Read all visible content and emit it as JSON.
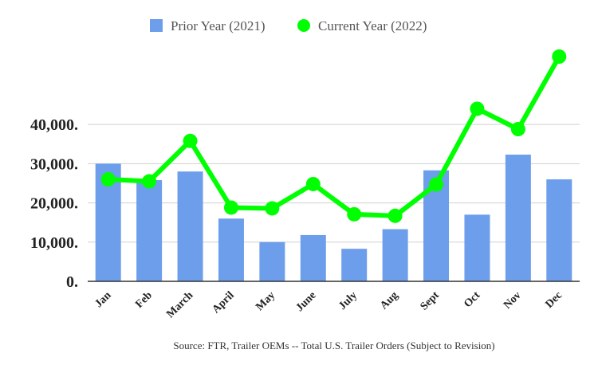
{
  "chart_data": {
    "type": "bar",
    "categories": [
      "Jan",
      "Feb",
      "March",
      "April",
      "May",
      "June",
      "July",
      "Aug",
      "Sept",
      "Oct",
      "Nov",
      "Dec"
    ],
    "series": [
      {
        "name": "Prior Year (2021)",
        "type": "bar",
        "color": "#6d9eeb",
        "values": [
          30000,
          25800,
          28000,
          16000,
          10000,
          11800,
          8300,
          13300,
          28300,
          17000,
          32300,
          26000
        ]
      },
      {
        "name": "Current Year (2022)",
        "type": "line",
        "color": "#00ff00",
        "values": [
          26000,
          25500,
          35800,
          18800,
          18600,
          24800,
          17100,
          16700,
          24700,
          44000,
          38800,
          57300
        ]
      }
    ],
    "ylim": [
      0,
      57300
    ],
    "yticks": [
      0,
      10000,
      20000,
      30000,
      40000
    ],
    "ytick_labels": [
      "0.",
      "10,000.",
      "20,000.",
      "30,000.",
      "40,000."
    ],
    "grid": true,
    "legend_position": "top",
    "source": "Source: FTR, Trailer OEMs -- Total U.S. Trailer Orders (Subject to Revision)"
  }
}
